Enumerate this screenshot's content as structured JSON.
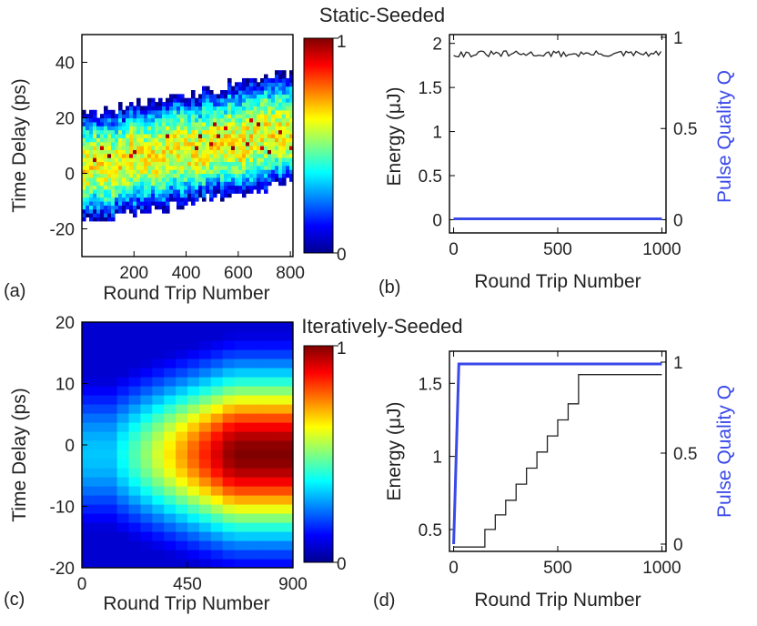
{
  "titles": {
    "top": "Static-Seeded",
    "bottom": "Iteratively-Seeded"
  },
  "colors": {
    "axis": "#000000",
    "text": "#222222",
    "energy_line": "#222222",
    "q_line": "#3a49e8",
    "q_label": "#3a49e8"
  },
  "chart_data": [
    {
      "id": "a",
      "panel_label": "(a)",
      "type": "heatmap",
      "title": "Static-Seeded",
      "xlabel": "Round Trip Number",
      "ylabel": "Time Delay (ps)",
      "xlim": [
        0,
        810
      ],
      "ylim": [
        -30,
        50
      ],
      "xticks": [
        200,
        400,
        600,
        800
      ],
      "yticks": [
        -20,
        0,
        20,
        40
      ],
      "colorbar": {
        "min": 0,
        "max": 1,
        "min_label": "0",
        "max_label": "1"
      },
      "band": {
        "description": "noisy drifting pulse trace",
        "center_start": 2,
        "center_end": 14,
        "upper_edge_start": 20,
        "upper_edge_end": 36,
        "lower_edge_start": -18,
        "lower_edge_end": -4,
        "peak_intensity": 1.0
      }
    },
    {
      "id": "b",
      "panel_label": "(b)",
      "type": "line",
      "xlabel": "Round Trip Number",
      "ylabel": "Energy (μJ)",
      "ylabel_right": "Pulse Quality Q",
      "xlim": [
        -20,
        1020
      ],
      "ylim": [
        -0.15,
        2.1
      ],
      "ylim_right": [
        -0.0725,
        1.015
      ],
      "xticks": [
        0,
        500,
        1000
      ],
      "yticks": [
        0,
        0.5,
        1,
        1.5,
        2
      ],
      "yticks_right": [
        0,
        0.5,
        1
      ],
      "series": [
        {
          "name": "Energy",
          "axis": "left",
          "x": [
            0,
            1000
          ],
          "mean": 1.88,
          "noise": 0.035,
          "color": "#222222"
        },
        {
          "name": "Pulse Quality Q",
          "axis": "right",
          "x": [
            0,
            1000
          ],
          "values": [
            0.005,
            0.005
          ],
          "color": "#3a49e8"
        }
      ]
    },
    {
      "id": "c",
      "panel_label": "(c)",
      "type": "heatmap",
      "title": "Iteratively-Seeded",
      "xlabel": "Round Trip Number",
      "ylabel": "Time Delay (ps)",
      "xlim": [
        0,
        900
      ],
      "ylim": [
        -20,
        20
      ],
      "xticks": [
        0,
        450,
        900
      ],
      "yticks": [
        -20,
        -10,
        0,
        10,
        20
      ],
      "colorbar": {
        "min": 0,
        "max": 1,
        "min_label": "0",
        "max_label": "1"
      },
      "band": {
        "description": "pulse narrows and intensifies in steps, then saturates",
        "center": -1.5,
        "step_width": 50,
        "growth_start": 100,
        "growth_end": 620,
        "peak_intensity": 1.0
      }
    },
    {
      "id": "d",
      "panel_label": "(d)",
      "type": "line",
      "xlabel": "Round Trip Number",
      "ylabel": "Energy (μJ)",
      "ylabel_right": "Pulse Quality Q",
      "xlim": [
        -20,
        1020
      ],
      "ylim": [
        0.35,
        1.72
      ],
      "ylim_right": [
        -0.04,
        1.06
      ],
      "xticks": [
        0,
        500,
        1000
      ],
      "yticks": [
        0.5,
        1,
        1.5
      ],
      "yticks_right": [
        0,
        0.5,
        1
      ],
      "series": [
        {
          "name": "Energy",
          "axis": "left",
          "x": [
            0,
            150,
            150,
            200,
            200,
            250,
            250,
            300,
            300,
            350,
            350,
            400,
            400,
            450,
            450,
            500,
            500,
            550,
            550,
            600,
            600,
            1000
          ],
          "values": [
            0.38,
            0.38,
            0.5,
            0.5,
            0.6,
            0.6,
            0.7,
            0.7,
            0.81,
            0.81,
            0.92,
            0.92,
            1.03,
            1.03,
            1.14,
            1.14,
            1.25,
            1.25,
            1.36,
            1.36,
            1.56,
            1.56
          ],
          "color": "#222222"
        },
        {
          "name": "Pulse Quality Q",
          "axis": "right",
          "x": [
            0,
            25,
            1000
          ],
          "values": [
            0.0,
            0.99,
            0.99
          ],
          "color": "#3a49e8"
        }
      ]
    }
  ]
}
